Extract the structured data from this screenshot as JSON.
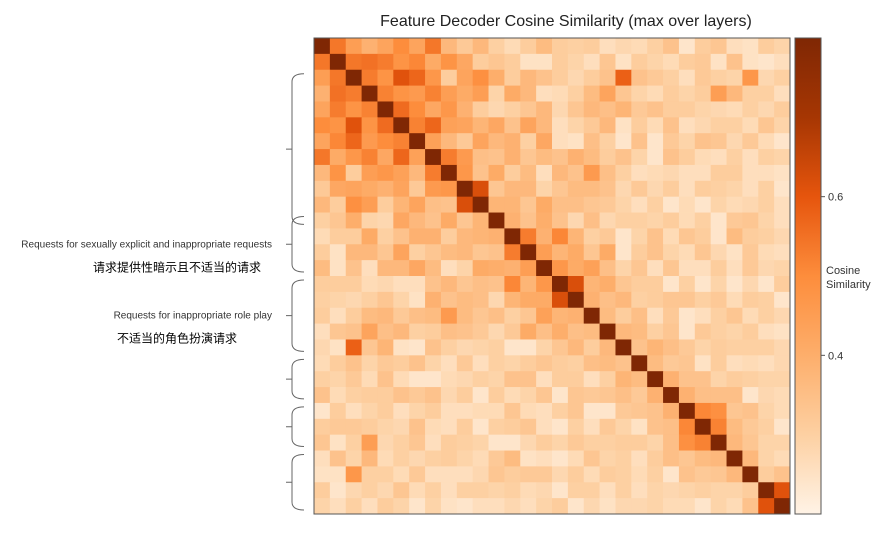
{
  "chart_data": {
    "type": "heatmap",
    "title": "Feature Decoder Cosine Similarity (max over layers)",
    "n": 30,
    "colorbar": {
      "label": [
        "Cosine",
        "Similarity"
      ],
      "ticks": [
        {
          "value": 0.6,
          "label": "0.6"
        },
        {
          "value": 0.4,
          "label": "0.4"
        }
      ],
      "range": [
        0.2,
        0.8
      ],
      "colors": [
        "#fff3e6",
        "#fdd0a2",
        "#fdae6b",
        "#fd8d3c",
        "#e6550d",
        "#a63603",
        "#7f2704"
      ]
    },
    "groups": [
      {
        "start": 2,
        "end": 11,
        "label": "",
        "label_zh": ""
      },
      {
        "start": 11,
        "end": 14,
        "label": "Requests for sexually explicit and inappropriate requests",
        "label_zh": "请求提供性暗示且不适当的请求"
      },
      {
        "start": 15,
        "end": 19,
        "label": "Requests for inappropriate role play",
        "label_zh": "不适当的角色扮演请求"
      },
      {
        "start": 20,
        "end": 22,
        "label": "",
        "label_zh": ""
      },
      {
        "start": 23,
        "end": 25,
        "label": "",
        "label_zh": ""
      },
      {
        "start": 26,
        "end": 29,
        "label": "",
        "label_zh": ""
      }
    ],
    "matrix": [
      [
        1.0,
        0.54,
        0.45,
        0.39,
        0.43,
        0.5,
        0.43,
        0.54,
        0.37,
        0.32,
        0.37,
        0.3,
        0.27,
        0.31,
        0.36,
        0.31,
        0.3,
        0.31,
        0.26,
        0.28,
        0.27,
        0.3,
        0.34,
        0.24,
        0.31,
        0.33,
        0.26,
        0.25,
        0.31,
        0.29
      ],
      [
        0.54,
        1.0,
        0.54,
        0.55,
        0.53,
        0.48,
        0.51,
        0.41,
        0.48,
        0.42,
        0.31,
        0.33,
        0.31,
        0.25,
        0.25,
        0.31,
        0.29,
        0.26,
        0.33,
        0.25,
        0.31,
        0.29,
        0.27,
        0.31,
        0.32,
        0.25,
        0.34,
        0.25,
        0.24,
        0.26
      ],
      [
        0.45,
        0.54,
        1.0,
        0.53,
        0.48,
        0.61,
        0.57,
        0.47,
        0.31,
        0.43,
        0.49,
        0.4,
        0.31,
        0.37,
        0.34,
        0.31,
        0.28,
        0.31,
        0.34,
        0.58,
        0.34,
        0.32,
        0.3,
        0.26,
        0.32,
        0.3,
        0.29,
        0.47,
        0.28,
        0.3
      ],
      [
        0.39,
        0.55,
        0.53,
        1.0,
        0.52,
        0.48,
        0.46,
        0.52,
        0.45,
        0.41,
        0.45,
        0.29,
        0.41,
        0.37,
        0.26,
        0.27,
        0.3,
        0.36,
        0.43,
        0.33,
        0.29,
        0.27,
        0.31,
        0.29,
        0.31,
        0.45,
        0.37,
        0.3,
        0.3,
        0.26
      ],
      [
        0.43,
        0.53,
        0.48,
        0.52,
        1.0,
        0.56,
        0.5,
        0.42,
        0.47,
        0.39,
        0.31,
        0.28,
        0.3,
        0.33,
        0.37,
        0.28,
        0.33,
        0.37,
        0.35,
        0.38,
        0.32,
        0.34,
        0.31,
        0.31,
        0.29,
        0.28,
        0.27,
        0.3,
        0.28,
        0.31
      ],
      [
        0.5,
        0.48,
        0.61,
        0.48,
        0.56,
        1.0,
        0.52,
        0.57,
        0.44,
        0.43,
        0.38,
        0.42,
        0.34,
        0.43,
        0.37,
        0.26,
        0.29,
        0.32,
        0.37,
        0.25,
        0.31,
        0.27,
        0.34,
        0.26,
        0.28,
        0.3,
        0.3,
        0.27,
        0.33,
        0.29
      ],
      [
        0.43,
        0.51,
        0.57,
        0.46,
        0.5,
        0.52,
        1.0,
        0.44,
        0.37,
        0.32,
        0.43,
        0.37,
        0.39,
        0.3,
        0.42,
        0.26,
        0.25,
        0.35,
        0.3,
        0.24,
        0.34,
        0.24,
        0.32,
        0.29,
        0.34,
        0.33,
        0.28,
        0.32,
        0.27,
        0.24
      ],
      [
        0.54,
        0.41,
        0.47,
        0.52,
        0.42,
        0.57,
        0.44,
        1.0,
        0.53,
        0.46,
        0.35,
        0.34,
        0.39,
        0.33,
        0.36,
        0.34,
        0.39,
        0.36,
        0.31,
        0.34,
        0.29,
        0.24,
        0.34,
        0.31,
        0.27,
        0.26,
        0.3,
        0.26,
        0.3,
        0.29
      ],
      [
        0.37,
        0.48,
        0.31,
        0.45,
        0.47,
        0.44,
        0.37,
        0.53,
        1.0,
        0.47,
        0.34,
        0.41,
        0.31,
        0.36,
        0.26,
        0.37,
        0.34,
        0.46,
        0.35,
        0.3,
        0.26,
        0.27,
        0.28,
        0.26,
        0.26,
        0.31,
        0.31,
        0.26,
        0.26,
        0.25
      ],
      [
        0.32,
        0.42,
        0.43,
        0.41,
        0.39,
        0.43,
        0.32,
        0.46,
        0.47,
        1.0,
        0.62,
        0.33,
        0.37,
        0.37,
        0.29,
        0.33,
        0.36,
        0.36,
        0.34,
        0.28,
        0.32,
        0.28,
        0.31,
        0.26,
        0.31,
        0.3,
        0.29,
        0.26,
        0.3,
        0.24
      ],
      [
        0.37,
        0.31,
        0.49,
        0.45,
        0.31,
        0.38,
        0.43,
        0.35,
        0.34,
        0.62,
        1.0,
        0.38,
        0.38,
        0.33,
        0.41,
        0.35,
        0.35,
        0.33,
        0.32,
        0.29,
        0.26,
        0.3,
        0.24,
        0.27,
        0.24,
        0.29,
        0.27,
        0.28,
        0.3,
        0.26
      ],
      [
        0.3,
        0.33,
        0.4,
        0.29,
        0.28,
        0.42,
        0.37,
        0.34,
        0.41,
        0.33,
        0.38,
        1.0,
        0.39,
        0.34,
        0.4,
        0.34,
        0.28,
        0.35,
        0.28,
        0.3,
        0.3,
        0.29,
        0.31,
        0.27,
        0.3,
        0.24,
        0.32,
        0.33,
        0.29,
        0.26
      ],
      [
        0.27,
        0.31,
        0.31,
        0.41,
        0.3,
        0.34,
        0.39,
        0.39,
        0.31,
        0.37,
        0.38,
        0.39,
        1.0,
        0.53,
        0.39,
        0.51,
        0.38,
        0.3,
        0.32,
        0.24,
        0.29,
        0.34,
        0.27,
        0.33,
        0.31,
        0.24,
        0.36,
        0.31,
        0.3,
        0.28
      ],
      [
        0.31,
        0.25,
        0.37,
        0.37,
        0.33,
        0.43,
        0.3,
        0.33,
        0.36,
        0.37,
        0.33,
        0.34,
        0.53,
        1.0,
        0.45,
        0.38,
        0.41,
        0.33,
        0.41,
        0.24,
        0.31,
        0.34,
        0.29,
        0.27,
        0.33,
        0.28,
        0.25,
        0.32,
        0.27,
        0.26
      ],
      [
        0.36,
        0.25,
        0.34,
        0.26,
        0.37,
        0.37,
        0.42,
        0.36,
        0.26,
        0.29,
        0.41,
        0.4,
        0.39,
        0.45,
        1.0,
        0.47,
        0.41,
        0.44,
        0.35,
        0.29,
        0.33,
        0.26,
        0.33,
        0.26,
        0.26,
        0.31,
        0.26,
        0.32,
        0.28,
        0.29
      ],
      [
        0.31,
        0.31,
        0.31,
        0.27,
        0.28,
        0.26,
        0.26,
        0.34,
        0.37,
        0.33,
        0.35,
        0.34,
        0.51,
        0.38,
        0.47,
        1.0,
        0.62,
        0.38,
        0.4,
        0.33,
        0.31,
        0.31,
        0.24,
        0.3,
        0.24,
        0.29,
        0.24,
        0.28,
        0.24,
        0.31
      ],
      [
        0.3,
        0.29,
        0.28,
        0.3,
        0.33,
        0.29,
        0.25,
        0.39,
        0.34,
        0.36,
        0.35,
        0.28,
        0.38,
        0.41,
        0.41,
        0.62,
        1.0,
        0.39,
        0.35,
        0.37,
        0.3,
        0.31,
        0.33,
        0.33,
        0.3,
        0.32,
        0.27,
        0.31,
        0.3,
        0.24
      ],
      [
        0.31,
        0.26,
        0.31,
        0.36,
        0.37,
        0.32,
        0.35,
        0.36,
        0.46,
        0.36,
        0.33,
        0.35,
        0.3,
        0.33,
        0.44,
        0.38,
        0.39,
        1.0,
        0.36,
        0.31,
        0.35,
        0.26,
        0.32,
        0.24,
        0.26,
        0.3,
        0.33,
        0.27,
        0.3,
        0.28
      ],
      [
        0.26,
        0.33,
        0.34,
        0.43,
        0.35,
        0.37,
        0.3,
        0.31,
        0.35,
        0.34,
        0.32,
        0.28,
        0.32,
        0.41,
        0.35,
        0.4,
        0.35,
        0.36,
        1.0,
        0.37,
        0.36,
        0.3,
        0.33,
        0.24,
        0.32,
        0.3,
        0.29,
        0.31,
        0.26,
        0.25
      ],
      [
        0.28,
        0.25,
        0.58,
        0.33,
        0.38,
        0.25,
        0.24,
        0.34,
        0.3,
        0.28,
        0.29,
        0.3,
        0.24,
        0.24,
        0.29,
        0.33,
        0.37,
        0.31,
        0.37,
        1.0,
        0.34,
        0.38,
        0.35,
        0.32,
        0.29,
        0.31,
        0.3,
        0.3,
        0.3,
        0.28
      ],
      [
        0.27,
        0.31,
        0.34,
        0.29,
        0.32,
        0.31,
        0.34,
        0.29,
        0.26,
        0.32,
        0.26,
        0.3,
        0.29,
        0.31,
        0.33,
        0.31,
        0.3,
        0.35,
        0.36,
        0.34,
        1.0,
        0.36,
        0.32,
        0.33,
        0.25,
        0.31,
        0.26,
        0.27,
        0.26,
        0.28
      ],
      [
        0.3,
        0.29,
        0.32,
        0.27,
        0.34,
        0.27,
        0.24,
        0.24,
        0.27,
        0.28,
        0.3,
        0.29,
        0.34,
        0.34,
        0.26,
        0.31,
        0.31,
        0.26,
        0.3,
        0.38,
        0.36,
        1.0,
        0.39,
        0.34,
        0.34,
        0.29,
        0.31,
        0.3,
        0.29,
        0.29
      ],
      [
        0.34,
        0.27,
        0.3,
        0.31,
        0.31,
        0.34,
        0.32,
        0.34,
        0.28,
        0.31,
        0.24,
        0.31,
        0.27,
        0.29,
        0.33,
        0.24,
        0.33,
        0.32,
        0.33,
        0.35,
        0.32,
        0.39,
        1.0,
        0.39,
        0.35,
        0.35,
        0.35,
        0.24,
        0.28,
        0.27
      ],
      [
        0.24,
        0.31,
        0.26,
        0.29,
        0.31,
        0.26,
        0.29,
        0.31,
        0.26,
        0.26,
        0.27,
        0.27,
        0.33,
        0.27,
        0.26,
        0.3,
        0.33,
        0.24,
        0.24,
        0.32,
        0.33,
        0.34,
        0.39,
        1.0,
        0.51,
        0.49,
        0.33,
        0.34,
        0.29,
        0.27
      ],
      [
        0.31,
        0.32,
        0.32,
        0.31,
        0.29,
        0.28,
        0.34,
        0.27,
        0.26,
        0.31,
        0.24,
        0.3,
        0.31,
        0.33,
        0.26,
        0.24,
        0.3,
        0.26,
        0.32,
        0.29,
        0.25,
        0.34,
        0.35,
        0.51,
        1.0,
        0.52,
        0.36,
        0.32,
        0.3,
        0.24
      ],
      [
        0.33,
        0.25,
        0.3,
        0.45,
        0.28,
        0.3,
        0.33,
        0.26,
        0.31,
        0.3,
        0.29,
        0.24,
        0.24,
        0.28,
        0.31,
        0.29,
        0.32,
        0.3,
        0.3,
        0.31,
        0.31,
        0.29,
        0.35,
        0.49,
        0.52,
        1.0,
        0.37,
        0.33,
        0.29,
        0.29
      ],
      [
        0.26,
        0.34,
        0.29,
        0.37,
        0.27,
        0.3,
        0.28,
        0.3,
        0.31,
        0.29,
        0.27,
        0.32,
        0.36,
        0.25,
        0.26,
        0.24,
        0.27,
        0.33,
        0.29,
        0.3,
        0.26,
        0.31,
        0.35,
        0.33,
        0.36,
        0.37,
        1.0,
        0.37,
        0.29,
        0.27
      ],
      [
        0.25,
        0.25,
        0.47,
        0.3,
        0.3,
        0.27,
        0.32,
        0.26,
        0.26,
        0.26,
        0.28,
        0.33,
        0.31,
        0.32,
        0.32,
        0.28,
        0.31,
        0.27,
        0.31,
        0.3,
        0.27,
        0.3,
        0.24,
        0.34,
        0.32,
        0.33,
        0.37,
        1.0,
        0.31,
        0.34
      ],
      [
        0.31,
        0.24,
        0.28,
        0.3,
        0.28,
        0.33,
        0.27,
        0.3,
        0.26,
        0.3,
        0.3,
        0.29,
        0.3,
        0.27,
        0.28,
        0.24,
        0.3,
        0.3,
        0.26,
        0.3,
        0.26,
        0.29,
        0.28,
        0.29,
        0.3,
        0.29,
        0.29,
        0.31,
        1.0,
        0.61
      ],
      [
        0.29,
        0.26,
        0.3,
        0.26,
        0.31,
        0.29,
        0.24,
        0.29,
        0.25,
        0.24,
        0.26,
        0.26,
        0.28,
        0.26,
        0.29,
        0.31,
        0.24,
        0.28,
        0.25,
        0.28,
        0.28,
        0.29,
        0.27,
        0.27,
        0.24,
        0.29,
        0.27,
        0.34,
        0.61,
        1.0
      ]
    ]
  }
}
